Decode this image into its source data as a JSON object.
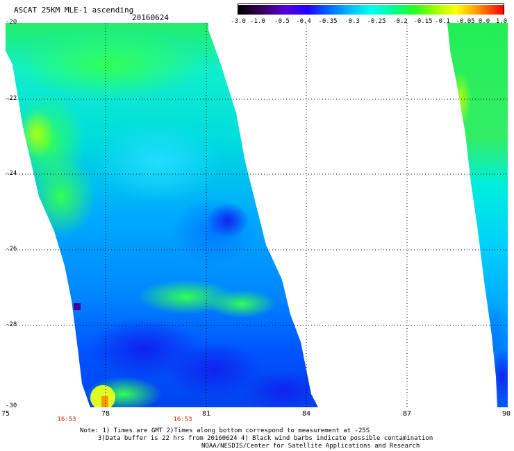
{
  "header": {
    "title": "ASCAT 25KM MLE-1 ascending",
    "date": "20160624"
  },
  "colorbar": {
    "labels": [
      "-3.0",
      "-1.0",
      "-0.5",
      "-0.4",
      "-0.35",
      "-0.3",
      "-0.25",
      "-0.2",
      "-0.15",
      "-0.1",
      "-0.05",
      "0.0",
      "1.0"
    ],
    "colors": [
      "#000000",
      "#3a0066",
      "#6a00cc",
      "#2200ff",
      "#0044ff",
      "#0088ff",
      "#00ccff",
      "#00ffee",
      "#00ff99",
      "#22ff22",
      "#99ff00",
      "#ffff00",
      "#ffaa00",
      "#ff5500",
      "#ff0000"
    ]
  },
  "axes": {
    "y_ticks": [
      "-20",
      "-22",
      "-24",
      "-26",
      "-28",
      "-30"
    ],
    "x_ticks": [
      "75",
      "78",
      "81",
      "84",
      "87",
      "90"
    ],
    "time_labels": [
      "16:53",
      "16:53"
    ]
  },
  "notes": {
    "line1": "Note: 1) Times are GMT 2)Times along bottom correspond to measurement at -25S",
    "line2": "3)Data buffer is 22 hrs from 20160624 4) Black wind barbs indicate possible contamination",
    "credit": "NOAA/NESDIS/Center for Satellite Applications and Research"
  },
  "swath_colors": {
    "green": "#22ee55",
    "light_green": "#44ff66",
    "yellow_green": "#99ff22",
    "cyan": "#00eeee",
    "light_cyan": "#33ffdd",
    "sky": "#00bbff",
    "blue": "#0066ff",
    "dark_blue": "#1133ee",
    "navy": "#2211cc",
    "purple": "#440099",
    "yellow": "#ffff00",
    "orange": "#ff9900"
  }
}
